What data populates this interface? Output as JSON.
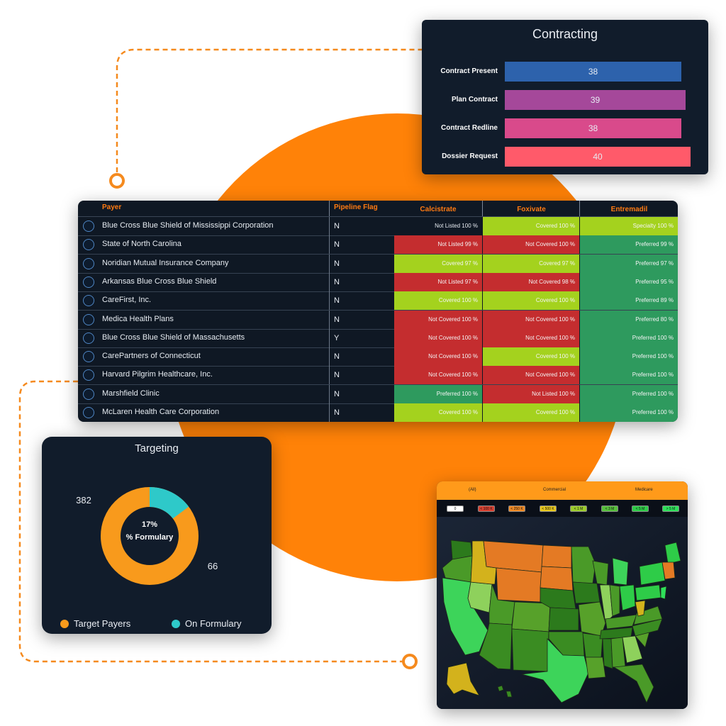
{
  "contracting": {
    "title": "Contracting",
    "rows": [
      {
        "label": "Contract Present",
        "value": "38",
        "color": "#2d62ac"
      },
      {
        "label": "Plan Contract",
        "value": "39",
        "color": "#a5489a"
      },
      {
        "label": "Contract Redline",
        "value": "38",
        "color": "#d94a8b"
      },
      {
        "label": "Dossier Request",
        "value": "40",
        "color": "#ff5a6a"
      }
    ]
  },
  "table": {
    "headers": {
      "payer": "Payer",
      "pipeline_flag": "Pipeline Flag",
      "drug1": "Calcistrate",
      "drug2": "Foxivate",
      "drug3": "Entremadil"
    },
    "rows": [
      {
        "payer": "Blue Cross Blue Shield of Mississippi Corporation",
        "flag": "N",
        "c1": "Not Listed 100 %",
        "c2": "Covered 100 %",
        "c3": "Specialty 100 %"
      },
      {
        "payer": "State of North Carolina",
        "flag": "N",
        "c1": "Not Listed 99 %",
        "c2": "Not Covered 100 %",
        "c3": "Preferred 99 %"
      },
      {
        "payer": "Noridian Mutual Insurance Company",
        "flag": "N",
        "c1": "Covered 97 %",
        "c2": "Covered 97 %",
        "c3": "Preferred 97 %"
      },
      {
        "payer": "Arkansas Blue Cross Blue Shield",
        "flag": "N",
        "c1": "Not Listed 97 %",
        "c2": "Not Covered 98 %",
        "c3": "Preferred 95 %"
      },
      {
        "payer": "CareFirst, Inc.",
        "flag": "N",
        "c1": "Covered 100 %",
        "c2": "Covered 100 %",
        "c3": "Preferred 89 %"
      },
      {
        "payer": "Medica Health Plans",
        "flag": "N",
        "c1": "Not Covered 100 %",
        "c2": "Not Covered 100 %",
        "c3": "Preferred 80 %"
      },
      {
        "payer": "Blue Cross Blue Shield of Massachusetts",
        "flag": "Y",
        "c1": "Not Covered 100 %",
        "c2": "Not Covered 100 %",
        "c3": "Preferred 100 %"
      },
      {
        "payer": "CarePartners of Connecticut",
        "flag": "N",
        "c1": "Not Covered 100 %",
        "c2": "Covered 100 %",
        "c3": "Preferred 100 %"
      },
      {
        "payer": "Harvard Pilgrim Healthcare, Inc.",
        "flag": "N",
        "c1": "Not Covered 100 %",
        "c2": "Not Covered 100 %",
        "c3": "Preferred 100 %"
      },
      {
        "payer": "Marshfield Clinic",
        "flag": "N",
        "c1": "Preferred 100 %",
        "c2": "Not Listed 100 %",
        "c3": "Preferred 100 %"
      },
      {
        "payer": "McLaren Health Care Corporation",
        "flag": "N",
        "c1": "Covered 100 %",
        "c2": "Covered 100 %",
        "c3": "Preferred 100 %"
      }
    ],
    "status_colors": {
      "Covered": "#a4d21e",
      "Not Covered": "#c42d2f",
      "Not Listed": "#c42d2f",
      "Preferred": "#2e9a5e",
      "Specialty": "#a4d21e"
    }
  },
  "targeting": {
    "title": "Targeting",
    "center_line1": "17%",
    "center_line2": "% Formulary",
    "target_value": "382",
    "formulary_value": "66",
    "legend_target": "Target Payers",
    "legend_formulary": "On Formulary",
    "colors": {
      "target": "#f89a1c",
      "formulary": "#2ec9c9"
    }
  },
  "map": {
    "tabs": [
      "(All)",
      "Commercial",
      "Medicare"
    ],
    "filters": [
      {
        "label": "0",
        "color": "#ffffff"
      },
      {
        "label": "< 100 K",
        "color": "#d94030"
      },
      {
        "label": "< 250 K",
        "color": "#f08a24"
      },
      {
        "label": "< 500 K",
        "color": "#e8c81c"
      },
      {
        "label": "< 1 M",
        "color": "#9ccc2c"
      },
      {
        "label": "< 3 M",
        "color": "#56c03c"
      },
      {
        "label": "< 5 M",
        "color": "#2ecc48"
      },
      {
        "label": "> 5 M",
        "color": "#2ee05a"
      }
    ]
  }
}
